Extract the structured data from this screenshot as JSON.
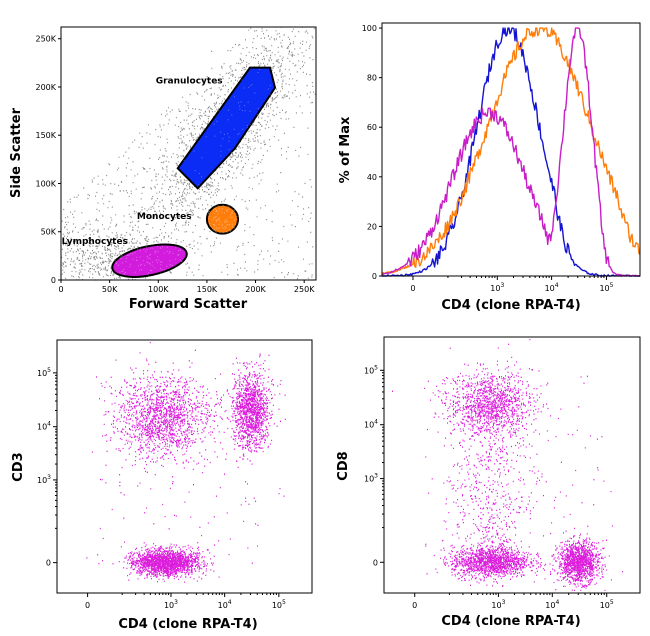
{
  "chart_data": [
    {
      "panel": "scatter",
      "type": "scatter",
      "xlabel": "Forward Scatter",
      "ylabel": "Side Scatter",
      "xlim": [
        0,
        262144
      ],
      "ylim": [
        0,
        262144
      ],
      "x_ticks": [
        0,
        50000,
        100000,
        150000,
        200000,
        250000
      ],
      "x_tick_labels": [
        "0",
        "50K",
        "100K",
        "150K",
        "200K",
        "250K"
      ],
      "y_ticks": [
        0,
        50000,
        100000,
        150000,
        200000,
        250000
      ],
      "y_tick_labels": [
        "0",
        "50K",
        "100K",
        "150K",
        "200K",
        "250K"
      ],
      "background_color": "#8a8a8a",
      "gates": [
        {
          "name": "Granulocytes",
          "color": "#0a2cf5",
          "x_range": [
            120000,
            220000
          ],
          "y_range": [
            95000,
            220000
          ]
        },
        {
          "name": "Monocytes",
          "color": "#ff7d0a",
          "x_range": [
            150000,
            182000
          ],
          "y_range": [
            48000,
            78000
          ]
        },
        {
          "name": "Lymphocytes",
          "color": "#d21bdc",
          "x_range": [
            52000,
            130000
          ],
          "y_range": [
            5000,
            35000
          ]
        }
      ]
    },
    {
      "panel": "histogram",
      "type": "line",
      "xlabel": "CD4 (clone RPA-T4)",
      "ylabel": "% of Max",
      "xscale": "biexponential",
      "ylim": [
        0,
        100
      ],
      "x_ticks": [
        0,
        1000,
        10000,
        100000
      ],
      "x_tick_labels": [
        {
          "text": "0"
        },
        {
          "base": "10",
          "exp": "3"
        },
        {
          "base": "10",
          "exp": "4"
        },
        {
          "base": "10",
          "exp": "5"
        }
      ],
      "y_ticks": [
        0,
        20,
        40,
        60,
        80,
        100
      ],
      "y_tick_labels": [
        "0",
        "20",
        "40",
        "60",
        "80",
        "100"
      ],
      "series": [
        {
          "color": "#1414d2",
          "peaks": [
            {
              "x": 1600,
              "y": 100,
              "width": 0.12
            }
          ]
        },
        {
          "color": "#ff7d0a",
          "peaks": [
            {
              "x": 6000,
              "y": 100,
              "width": 0.2
            }
          ]
        },
        {
          "color": "#c81ec8",
          "peaks": [
            {
              "x": 700,
              "y": 66,
              "width": 0.14
            },
            {
              "x": 30000,
              "y": 100,
              "width": 0.055
            }
          ]
        }
      ]
    },
    {
      "panel": "cd3-vs-cd4",
      "type": "scatter",
      "xlabel": "CD4 (clone RPA-T4)",
      "ylabel": "CD3",
      "xscale": "biexponential",
      "yscale": "biexponential",
      "point_color": "#dc1edc",
      "x_ticks": [
        0,
        1000,
        10000,
        100000
      ],
      "x_tick_labels": [
        {
          "text": "0"
        },
        {
          "base": "10",
          "exp": "3"
        },
        {
          "base": "10",
          "exp": "4"
        },
        {
          "base": "10",
          "exp": "5"
        }
      ],
      "y_ticks": [
        0,
        1000,
        10000,
        100000
      ],
      "y_tick_labels": [
        {
          "text": "0"
        },
        {
          "base": "10",
          "exp": "3"
        },
        {
          "base": "10",
          "exp": "4"
        },
        {
          "base": "10",
          "exp": "5"
        }
      ],
      "clusters": [
        {
          "x": 700,
          "y": 15000,
          "sx": 0.18,
          "sy": 0.16,
          "n": 1500
        },
        {
          "x": 30000,
          "y": 20000,
          "sx": 0.07,
          "sy": 0.15,
          "n": 1300
        },
        {
          "x": 800,
          "y": 0,
          "sx": 0.13,
          "sy": 0.05,
          "n": 1900
        }
      ]
    },
    {
      "panel": "cd8-vs-cd4",
      "type": "scatter",
      "xlabel": "CD4 (clone RPA-T4)",
      "ylabel": "CD8",
      "xscale": "biexponential",
      "yscale": "biexponential",
      "point_color": "#dc1edc",
      "x_ticks": [
        0,
        1000,
        10000,
        100000
      ],
      "x_tick_labels": [
        {
          "text": "0"
        },
        {
          "base": "10",
          "exp": "3"
        },
        {
          "base": "10",
          "exp": "4"
        },
        {
          "base": "10",
          "exp": "5"
        }
      ],
      "y_ticks": [
        0,
        1000,
        10000,
        100000
      ],
      "y_tick_labels": [
        {
          "text": "0"
        },
        {
          "base": "10",
          "exp": "3"
        },
        {
          "base": "10",
          "exp": "4"
        },
        {
          "base": "10",
          "exp": "5"
        }
      ],
      "clusters": [
        {
          "x": 700,
          "y": 25000,
          "sx": 0.16,
          "sy": 0.12,
          "n": 1700
        },
        {
          "x": 700,
          "y": 0,
          "sx": 0.15,
          "sy": 0.06,
          "n": 1400
        },
        {
          "x": 30000,
          "y": 0,
          "sx": 0.08,
          "sy": 0.08,
          "n": 1300
        }
      ]
    }
  ]
}
